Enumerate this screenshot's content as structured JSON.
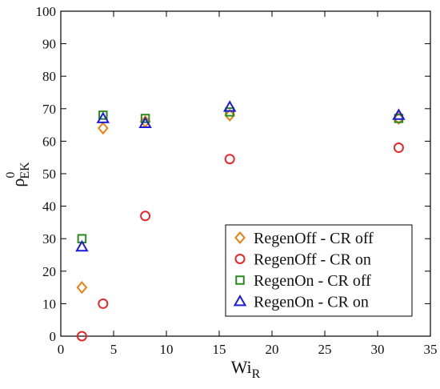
{
  "chart_data": {
    "type": "scatter",
    "xlabel_main": "Wi",
    "xlabel_sub": "R",
    "ylabel_main": "ρ",
    "ylabel_sup": "0",
    "ylabel_sub": "EK",
    "xlim": [
      0,
      35
    ],
    "ylim": [
      0,
      100
    ],
    "x_ticks": [
      0,
      5,
      10,
      15,
      20,
      25,
      30,
      35
    ],
    "y_ticks": [
      0,
      10,
      20,
      30,
      40,
      50,
      60,
      70,
      80,
      90,
      100
    ],
    "grid": false,
    "legend_position": "bottom-right",
    "series": [
      {
        "name": "RegenOff - CR off",
        "marker": "diamond",
        "color": "#f07f0f",
        "points": [
          [
            2,
            15
          ],
          [
            4,
            64
          ],
          [
            8,
            66
          ],
          [
            16,
            68
          ],
          [
            32,
            67
          ]
        ]
      },
      {
        "name": "RegenOff - CR on",
        "marker": "circle",
        "color": "#e8282b",
        "points": [
          [
            2,
            0
          ],
          [
            4,
            10
          ],
          [
            8,
            37
          ],
          [
            16,
            54.5
          ],
          [
            32,
            58
          ]
        ]
      },
      {
        "name": "RegenOn - CR off",
        "marker": "square",
        "color": "#2a8a1f",
        "points": [
          [
            2,
            30
          ],
          [
            4,
            68
          ],
          [
            8,
            67
          ],
          [
            16,
            69
          ],
          [
            32,
            67
          ]
        ]
      },
      {
        "name": "RegenOn - CR on",
        "marker": "triangle",
        "color": "#1b1bd9",
        "points": [
          [
            2,
            27.5
          ],
          [
            4,
            67
          ],
          [
            8,
            65.5
          ],
          [
            16,
            70.5
          ],
          [
            32,
            68
          ]
        ]
      }
    ]
  }
}
